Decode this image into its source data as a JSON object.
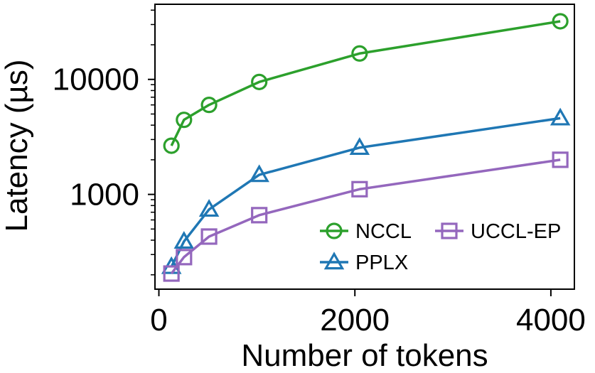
{
  "chart_data": {
    "type": "line",
    "title": "",
    "xlabel": "Number of tokens",
    "ylabel": "Latency (µs)",
    "xlim": [
      -40,
      4240
    ],
    "ylim": [
      150,
      45000
    ],
    "yscale": "log",
    "xticks": [
      0,
      2000,
      4000
    ],
    "xtick_labels": [
      "0",
      "2000",
      "4000"
    ],
    "yticks": [
      1000,
      10000
    ],
    "ytick_labels": [
      "1000",
      "10000"
    ],
    "x": [
      128,
      256,
      512,
      1024,
      2048,
      4096
    ],
    "series": [
      {
        "name": "NCCL",
        "color": "#2ca02c",
        "marker": "circle",
        "values": [
          2650,
          4450,
          6000,
          9500,
          16800,
          32000
        ]
      },
      {
        "name": "PPLX",
        "color": "#1f77b4",
        "marker": "triangle",
        "values": [
          235,
          390,
          740,
          1480,
          2550,
          4600
        ]
      },
      {
        "name": "UCCL-EP",
        "color": "#9467bd",
        "marker": "square",
        "values": [
          205,
          285,
          430,
          660,
          1110,
          2000
        ]
      }
    ],
    "legend": {
      "position": "bottom-right",
      "columns": 2
    }
  }
}
